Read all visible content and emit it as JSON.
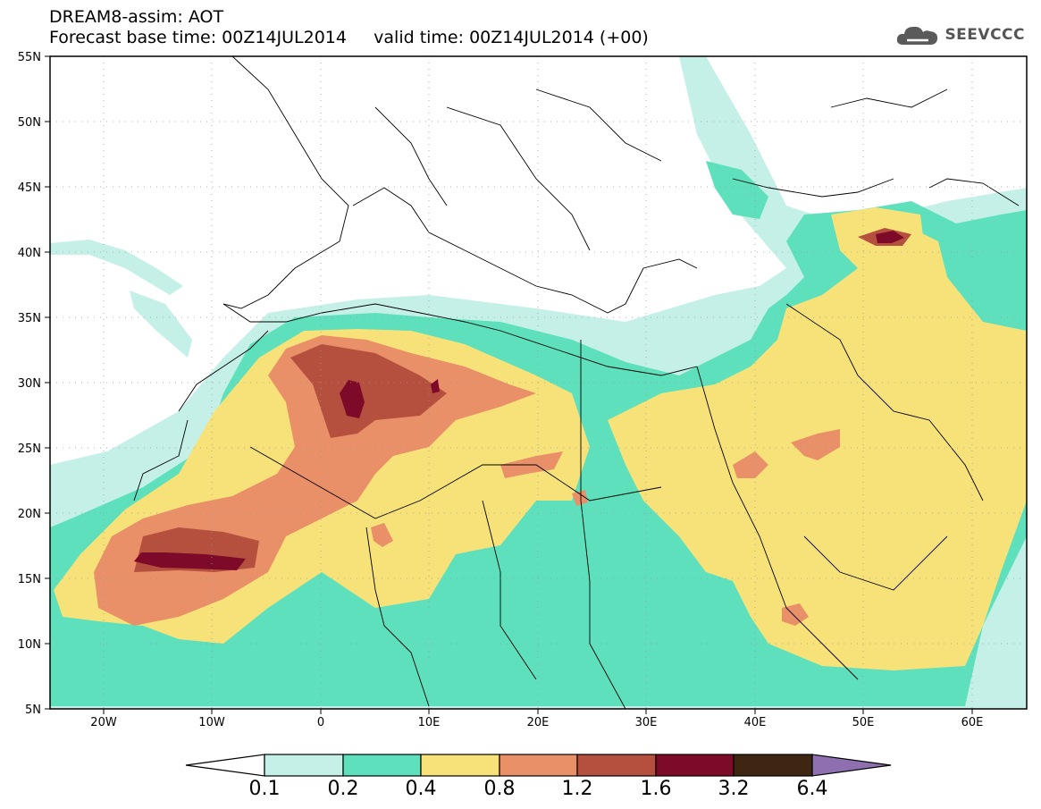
{
  "header": {
    "title_line1": "DREAM8-assim: AOT",
    "title_line2": "Forecast base time: 00Z14JUL2014     valid time: 00Z14JUL2014 (+00)"
  },
  "logo": {
    "text": "SEEVCCC",
    "icon": "cloud-icon"
  },
  "axes": {
    "lat_labels": [
      "55N",
      "50N",
      "45N",
      "40N",
      "35N",
      "30N",
      "25N",
      "20N",
      "15N",
      "10N",
      "5N"
    ],
    "lon_labels": [
      "20W",
      "10W",
      "0",
      "10E",
      "20E",
      "30E",
      "40E",
      "50E",
      "60E"
    ]
  },
  "colorbar": {
    "levels": [
      "0.1",
      "0.2",
      "0.4",
      "0.8",
      "1.2",
      "1.6",
      "3.2",
      "6.4"
    ],
    "colors": [
      "#ffffff",
      "#c4f0e8",
      "#5ee0bd",
      "#f7e27a",
      "#e99068",
      "#b5503e",
      "#7e0a2a",
      "#3e2712",
      "#8f6fb0"
    ]
  },
  "map": {
    "domain": "North Africa, Middle East and Europe",
    "lat_range": [
      5,
      55
    ],
    "lon_range": [
      -25,
      65
    ],
    "field": "Dust Aerosol Optical Thickness"
  }
}
